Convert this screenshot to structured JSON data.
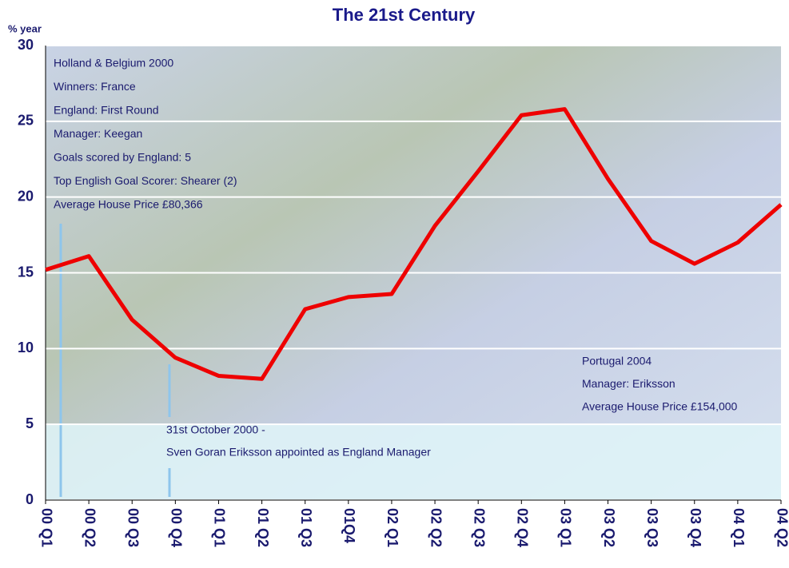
{
  "chart_data": {
    "type": "line",
    "title": "The 21st Century",
    "y_label": "% year",
    "categories": [
      "00 Q1",
      "00 Q2",
      "00 Q3",
      "00 Q4",
      "01 Q1",
      "01 Q2",
      "01 Q3",
      "01Q4",
      "02 Q1",
      "02 Q2",
      "02 Q3",
      "02 Q4",
      "03 Q1",
      "03 Q2",
      "03 Q3",
      "03 Q4",
      "04 Q1",
      "04 Q2"
    ],
    "values": [
      15.2,
      16.1,
      11.9,
      9.4,
      8.2,
      8.0,
      12.6,
      13.4,
      13.6,
      18.1,
      21.7,
      25.4,
      25.8,
      21.2,
      17.1,
      15.6,
      17.0,
      19.5
    ],
    "color": "#ee0000",
    "ylim": [
      0,
      30
    ],
    "yticks": [
      0,
      5,
      10,
      15,
      20,
      25,
      30
    ],
    "grid": true,
    "annotations": [
      {
        "lines": [
          "Holland & Belgium 2000",
          "Winners: France",
          "England: First Round",
          "Manager: Keegan",
          "Goals scored by England: 5",
          "Top English Goal Scorer: Shearer (2)",
          "Average House Price £80,366"
        ]
      },
      {
        "lines": [
          "31st October 2000 -",
          "Sven Goran Eriksson appointed as England Manager"
        ]
      },
      {
        "lines": [
          "Portugal 2004",
          "Manager: Eriksson",
          "Average House Price £154,000"
        ]
      }
    ]
  }
}
